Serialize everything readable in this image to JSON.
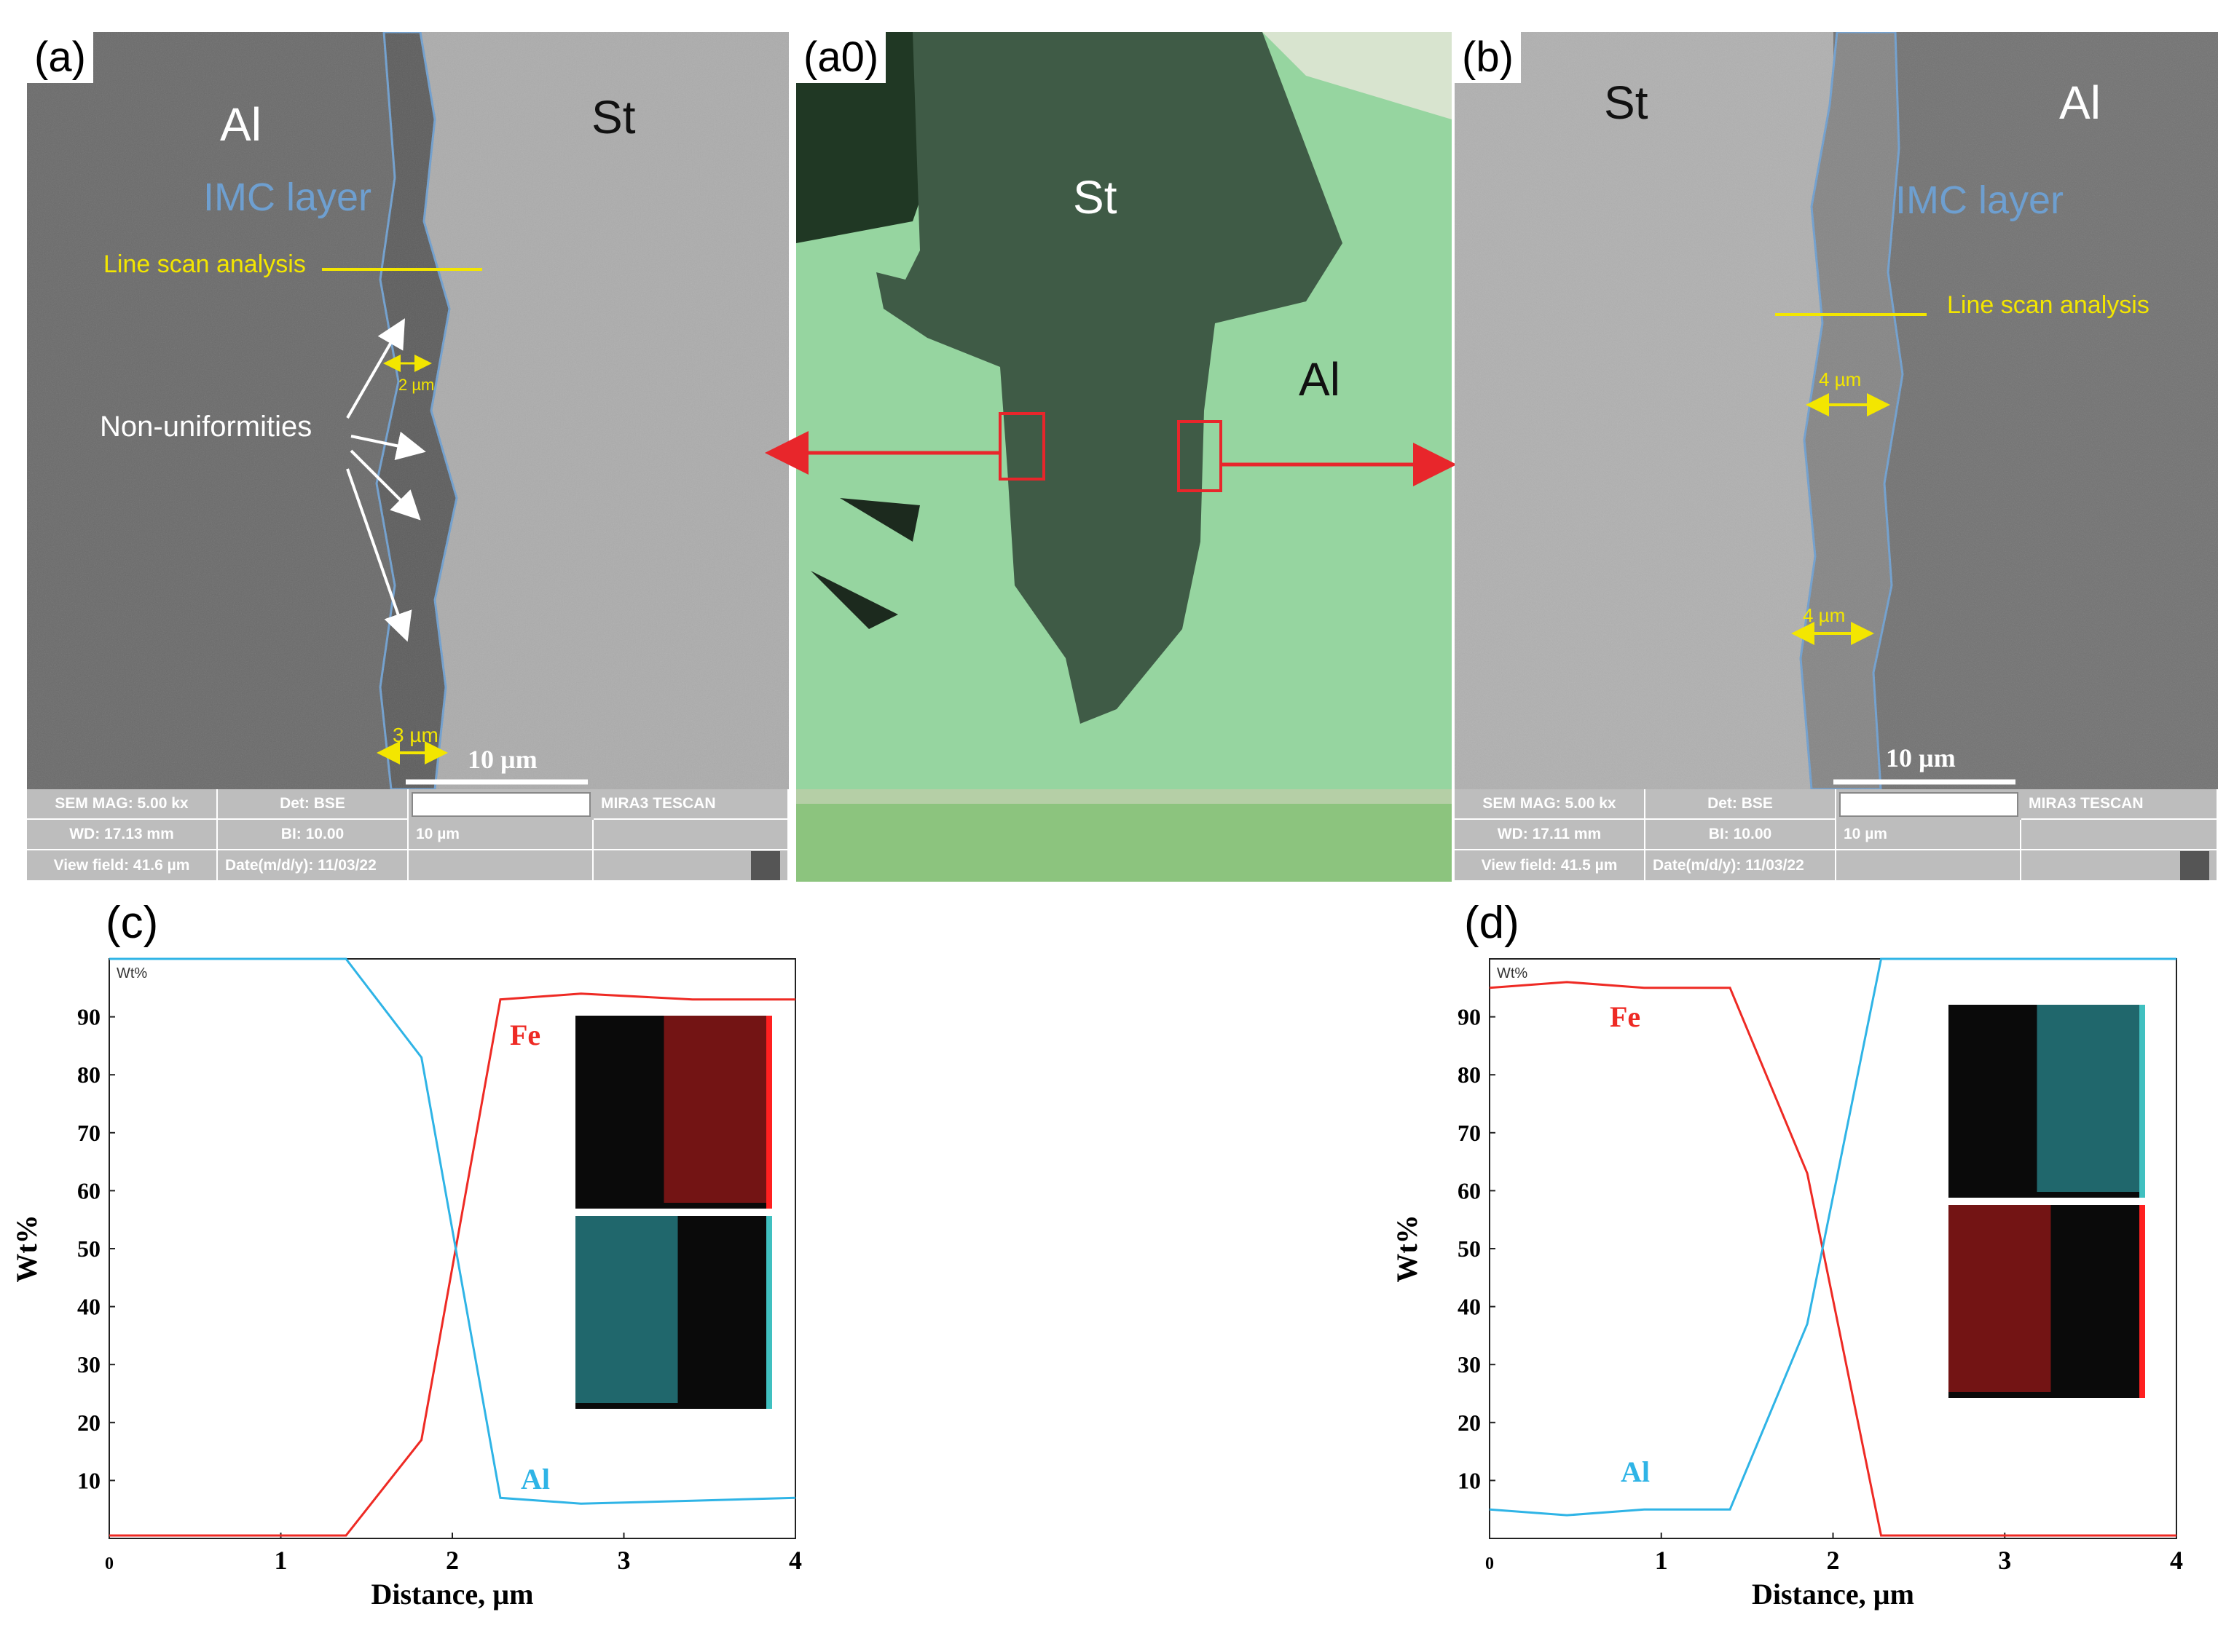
{
  "panel_labels": {
    "a": "(a)",
    "a0": "(a0)",
    "b": "(b)",
    "c": "(c)",
    "d": "(d)"
  },
  "sem_a": {
    "al": "Al",
    "st": "St",
    "imc": "IMC layer",
    "line_scan": "Line scan analysis",
    "nonuni": "Non-uniformities",
    "dim1": "2 µm",
    "dim2": "3 µm",
    "scale": "10 µm",
    "info": {
      "mag": "SEM MAG: 5.00 kx",
      "det": "Det: BSE",
      "wd": "WD: 17.13 mm",
      "bi": "BI: 10.00",
      "vf": "View field: 41.6 µm",
      "date": "Date(m/d/y): 11/03/22",
      "scale_small": "10 µm",
      "brand": "MIRA3 TESCAN"
    }
  },
  "optical_a0": {
    "st": "St",
    "al": "Al"
  },
  "sem_b": {
    "st": "St",
    "al": "Al",
    "imc": "IMC layer",
    "line_scan": "Line scan analysis",
    "dim1": "4 µm",
    "dim2": "4 µm",
    "scale": "10 µm",
    "info": {
      "mag": "SEM MAG: 5.00 kx",
      "det": "Det: BSE",
      "wd": "WD: 17.11 mm",
      "bi": "BI: 10.00",
      "vf": "View field: 41.5 µm",
      "date": "Date(m/d/y): 11/03/22",
      "scale_small": "10 µm",
      "brand": "MIRA3 TESCAN"
    }
  },
  "colors": {
    "fe": "#ee2a24",
    "al": "#2fb4e6",
    "yellow": "#f3e600",
    "imc_outline": "#6e9fd0",
    "arrow_red": "#e8262b"
  },
  "chart_data": [
    {
      "type": "line",
      "panel": "(c)",
      "unit_tag": "Wt%",
      "xlabel": "Distance, µm",
      "ylabel": "Wt%",
      "xlim": [
        0,
        4
      ],
      "ylim": [
        0,
        100
      ],
      "xticks": [
        "0",
        "1",
        "2",
        "3",
        "4"
      ],
      "yticks": [
        "10",
        "20",
        "30",
        "40",
        "50",
        "60",
        "70",
        "80",
        "90"
      ],
      "series": [
        {
          "name": "Fe",
          "x": [
            0,
            1.38,
            1.82,
            2.28,
            2.75,
            3.4,
            4
          ],
          "y": [
            0.5,
            0.5,
            17,
            93,
            94,
            93,
            93
          ]
        },
        {
          "name": "Al",
          "x": [
            0,
            1.38,
            1.82,
            2.28,
            2.75,
            3.4,
            4
          ],
          "y": [
            100,
            100,
            83,
            7,
            6,
            6.5,
            7
          ]
        }
      ]
    },
    {
      "type": "line",
      "panel": "(d)",
      "unit_tag": "Wt%",
      "xlabel": "Distance, µm",
      "ylabel": "Wt%",
      "xlim": [
        0,
        4
      ],
      "ylim": [
        0,
        100
      ],
      "xticks": [
        "0",
        "1",
        "2",
        "3",
        "4"
      ],
      "yticks": [
        "10",
        "20",
        "30",
        "40",
        "50",
        "60",
        "70",
        "80",
        "90"
      ],
      "series": [
        {
          "name": "Fe",
          "x": [
            0,
            0.45,
            0.9,
            1.4,
            1.85,
            2.28,
            2.75,
            4
          ],
          "y": [
            95,
            96,
            95,
            95,
            63,
            0.5,
            0.5,
            0.5
          ]
        },
        {
          "name": "Al",
          "x": [
            0,
            0.45,
            0.9,
            1.4,
            1.85,
            2.28,
            2.75,
            4
          ],
          "y": [
            5,
            4,
            5,
            5,
            37,
            100,
            100,
            100
          ]
        }
      ]
    }
  ]
}
